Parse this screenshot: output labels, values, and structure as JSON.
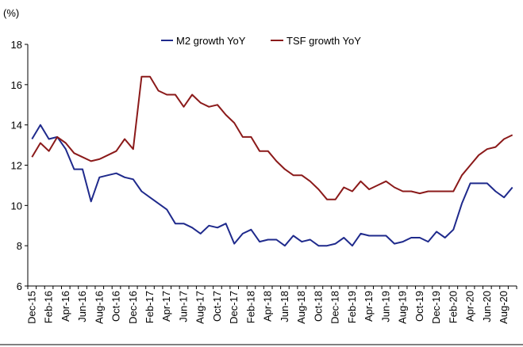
{
  "chart_data": {
    "type": "line",
    "ylabel": "(%)",
    "ylim": [
      6,
      18
    ],
    "yticks": [
      6,
      8,
      10,
      12,
      14,
      16,
      18
    ],
    "x_start": "Dec-15",
    "x_end": "Sep-20",
    "legend_position": "top-center",
    "x_tick_labels": [
      "Dec-15",
      "Feb-16",
      "Apr-16",
      "Jun-16",
      "Aug-16",
      "Oct-16",
      "Dec-16",
      "Feb-17",
      "Apr-17",
      "Jun-17",
      "Aug-17",
      "Oct-17",
      "Dec-17",
      "Feb-18",
      "Apr-18",
      "Jun-18",
      "Aug-18",
      "Oct-18",
      "Dec-18",
      "Feb-19",
      "Apr-19",
      "Jun-19",
      "Aug-19",
      "Oct-19",
      "Dec-19",
      "Feb-20",
      "Apr-20",
      "Jun-20",
      "Aug-20"
    ],
    "series": [
      {
        "name": "M2 growth YoY",
        "color": "#1f2a8c",
        "values": [
          13.3,
          14.0,
          13.3,
          13.4,
          12.8,
          11.8,
          11.8,
          10.2,
          11.4,
          11.5,
          11.6,
          11.4,
          11.3,
          10.7,
          10.4,
          10.1,
          9.8,
          9.1,
          9.1,
          8.9,
          8.6,
          9.0,
          8.9,
          9.1,
          8.1,
          8.6,
          8.8,
          8.2,
          8.3,
          8.3,
          8.0,
          8.5,
          8.2,
          8.3,
          8.0,
          8.0,
          8.1,
          8.4,
          8.0,
          8.6,
          8.5,
          8.5,
          8.5,
          8.1,
          8.2,
          8.4,
          8.4,
          8.2,
          8.7,
          8.4,
          8.8,
          10.1,
          11.1,
          11.1,
          11.1,
          10.7,
          10.4,
          10.9
        ]
      },
      {
        "name": "TSF growth YoY",
        "color": "#8b1a1a",
        "values": [
          12.4,
          13.1,
          12.7,
          13.4,
          13.1,
          12.6,
          12.4,
          12.2,
          12.3,
          12.5,
          12.7,
          13.3,
          12.8,
          16.4,
          16.4,
          15.7,
          15.5,
          15.5,
          14.9,
          15.5,
          15.1,
          14.9,
          15.0,
          14.5,
          14.1,
          13.4,
          13.4,
          12.7,
          12.7,
          12.2,
          11.8,
          11.5,
          11.5,
          11.2,
          10.8,
          10.3,
          10.3,
          10.9,
          10.7,
          11.2,
          10.8,
          11.0,
          11.2,
          10.9,
          10.7,
          10.7,
          10.6,
          10.7,
          10.7,
          10.7,
          10.7,
          11.5,
          12.0,
          12.5,
          12.8,
          12.9,
          13.3,
          13.5
        ]
      }
    ]
  }
}
